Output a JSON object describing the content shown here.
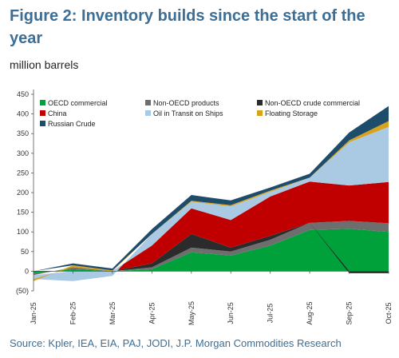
{
  "title": "Figure 2: Inventory builds since the start of the year",
  "unit_label": "million barrels",
  "source": "Source: Kpler, IEA, EIA, PAJ, JODI, J.P. Morgan Commodities Research",
  "chart_data": {
    "type": "area",
    "stacked": true,
    "categories": [
      "Jan-25",
      "Feb-25",
      "Mar-25",
      "Apr-25",
      "May-25",
      "Jun-25",
      "Jul-25",
      "Aug-25",
      "Sep-25",
      "Oct-25"
    ],
    "ylim": [
      -50,
      450
    ],
    "yticks": [
      -50,
      0,
      50,
      100,
      150,
      200,
      250,
      300,
      350,
      400,
      450
    ],
    "ytick_labels": [
      "(50)",
      "0",
      "50",
      "100",
      "150",
      "200",
      "250",
      "300",
      "350",
      "400",
      "450"
    ],
    "grid": false,
    "legend_position": "top-left, inside plot",
    "series": [
      {
        "name": "OECD commercial",
        "color": "#00a13a",
        "values": [
          -5,
          5,
          0,
          5,
          48,
          40,
          65,
          105,
          108,
          100
        ]
      },
      {
        "name": "Non-OECD products",
        "color": "#6e6e6e",
        "values": [
          -5,
          5,
          0,
          5,
          12,
          10,
          15,
          18,
          20,
          22
        ]
      },
      {
        "name": "Non-OECD crude commercial",
        "color": "#2b2b2b",
        "values": [
          0,
          0,
          0,
          10,
          35,
          10,
          10,
          0,
          -5,
          -5
        ]
      },
      {
        "name": "China",
        "color": "#c00000",
        "values": [
          0,
          0,
          0,
          45,
          65,
          70,
          100,
          105,
          90,
          105
        ]
      },
      {
        "name": "Oil in Transit on Ships",
        "color": "#aac9e3",
        "values": [
          -10,
          -25,
          -12,
          30,
          17,
          35,
          12,
          10,
          110,
          140
        ]
      },
      {
        "name": "Floating Storage",
        "color": "#d9a21b",
        "values": [
          -5,
          5,
          2,
          0,
          2,
          3,
          3,
          0,
          5,
          15
        ]
      },
      {
        "name": "Russian Crude",
        "color": "#1e4d6b",
        "values": [
          0,
          5,
          5,
          12,
          15,
          12,
          8,
          10,
          20,
          38
        ]
      }
    ]
  }
}
